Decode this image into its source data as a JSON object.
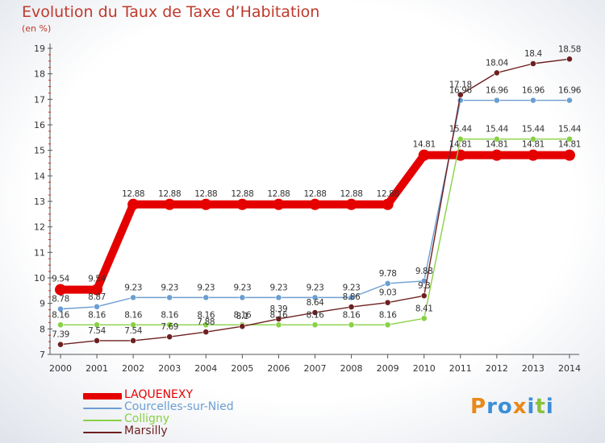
{
  "header": {
    "title": "Evolution du Taux de Taxe d’Habitation",
    "unit": "(en %)"
  },
  "brand": {
    "text": "Proxiti",
    "letters": [
      "P",
      "r",
      "o",
      "x",
      "i",
      "t",
      "i"
    ],
    "colors": [
      "#e8891a",
      "#3b8fd6",
      "#3b8fd6",
      "#e8891a",
      "#3b8fd6",
      "#89c13a",
      "#3b8fd6"
    ]
  },
  "colors": {
    "background_inner": "#ffffff",
    "background_outer": "#dfe3ea",
    "axis_tick_red": "#c0392b",
    "gridline": "#dddddd"
  },
  "chart_data": {
    "type": "line",
    "title": "Evolution du Taux de Taxe d’Habitation",
    "ylabel": "(en %)",
    "x": [
      "2000",
      "2001",
      "2002",
      "2003",
      "2004",
      "2005",
      "2006",
      "2007",
      "2008",
      "2009",
      "2010",
      "2011",
      "2012",
      "2013",
      "2014"
    ],
    "ylim": [
      7,
      19
    ],
    "yticks": [
      "7",
      "8",
      "9",
      "10",
      "11",
      "12",
      "13",
      "14",
      "15",
      "16",
      "17",
      "18",
      "19"
    ],
    "legend_position": "bottom-left",
    "series": [
      {
        "name": "LAQUENEXY",
        "color": "#e50000",
        "values": [
          9.54,
          9.54,
          12.88,
          12.88,
          12.88,
          12.88,
          12.88,
          12.88,
          12.88,
          12.88,
          14.81,
          14.81,
          14.81,
          14.81,
          14.81
        ],
        "labels": [
          "9.54",
          "9.54",
          "12.88",
          "12.88",
          "12.88",
          "12.88",
          "12.88",
          "12.88",
          "12.88",
          "12.88",
          "14.81",
          "14.81",
          "14.81",
          "14.81",
          "14.81"
        ]
      },
      {
        "name": "Courcelles-sur-Nied",
        "color": "#6b9ed1",
        "values": [
          8.78,
          8.87,
          9.23,
          9.23,
          9.23,
          9.23,
          9.23,
          9.23,
          9.23,
          9.78,
          9.88,
          16.96,
          16.96,
          16.96,
          16.96
        ],
        "labels": [
          "8.78",
          "8.87",
          "9.23",
          "9.23",
          "9.23",
          "9.23",
          "9.23",
          "9.23",
          "9.23",
          "9.78",
          "9.88",
          "16.96",
          "16.96",
          "16.96",
          "16.96"
        ]
      },
      {
        "name": "Colligny",
        "color": "#88d145",
        "values": [
          8.16,
          8.16,
          8.16,
          8.16,
          8.16,
          8.16,
          8.16,
          8.16,
          8.16,
          8.16,
          8.41,
          15.44,
          15.44,
          15.44,
          15.44
        ],
        "labels": [
          "8.16",
          "8.16",
          "8.16",
          "8.16",
          "8.16",
          "8.16",
          "8.16",
          "8.16",
          "8.16",
          "8.16",
          "8.41",
          "15.44",
          "15.44",
          "15.44",
          "15.44"
        ]
      },
      {
        "name": "Marsilly",
        "color": "#6e1f1f",
        "values": [
          7.39,
          7.54,
          7.54,
          7.69,
          7.88,
          8.1,
          8.39,
          8.64,
          8.86,
          9.03,
          9.3,
          17.18,
          18.04,
          18.4,
          18.58
        ],
        "labels": [
          "7.39",
          "7.54",
          "7.54",
          "7.69",
          "7.88",
          "8.1",
          "8.39",
          "8.64",
          "8.86",
          "9.03",
          "9.3",
          "17.18",
          "18.04",
          "18.4",
          "18.58"
        ]
      }
    ]
  }
}
